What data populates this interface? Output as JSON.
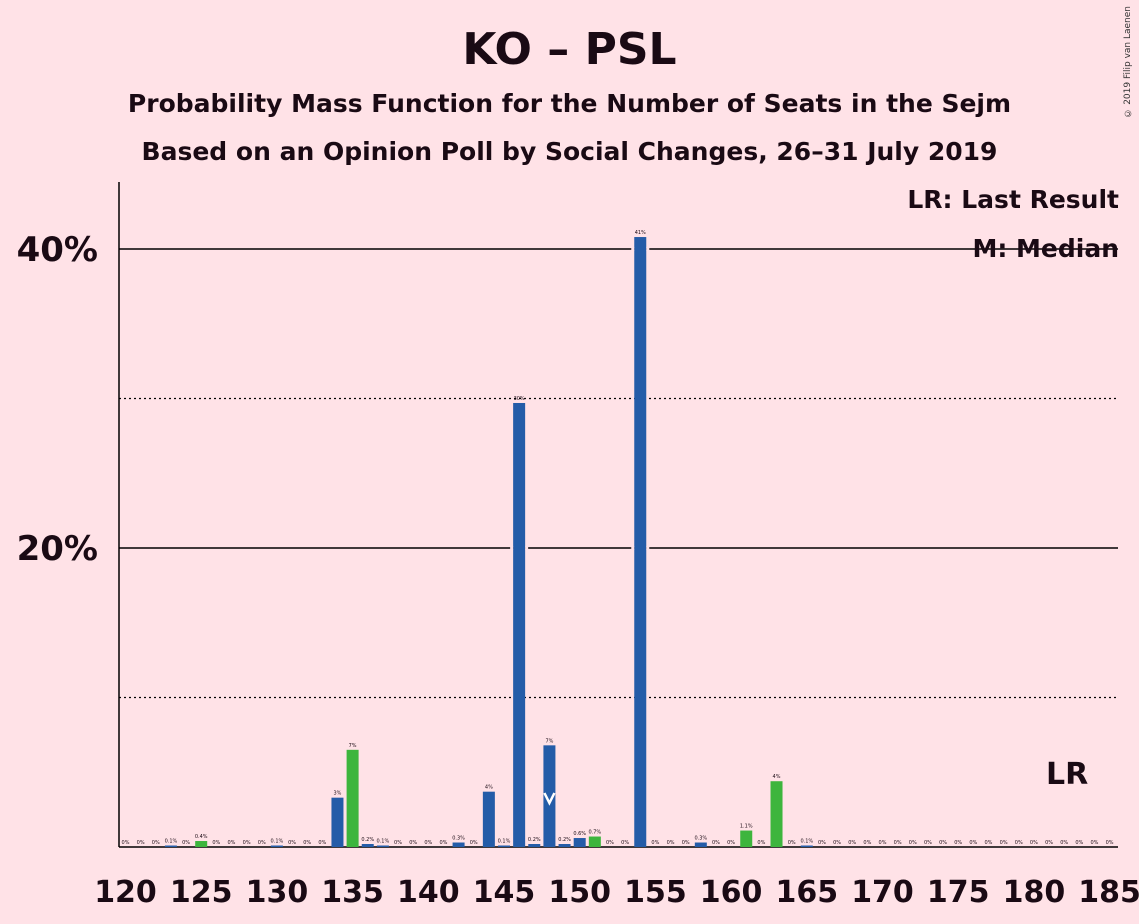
{
  "title": "KO – PSL",
  "subtitle1": "Probability Mass Function for the Number of Seats in the Sejm",
  "subtitle2": "Based on an Opinion Poll by Social Changes, 26–31 July 2019",
  "copyright": "© 2019 Filip van Laenen",
  "legend": {
    "lr": "LR: Last Result",
    "median": "M: Median"
  },
  "lr_marker": "LR",
  "chart_data": {
    "type": "bar",
    "ylabel": "",
    "xlabel": "",
    "ylim": [
      0,
      44.5
    ],
    "y_ticks": [
      {
        "v": 20,
        "label": "20%"
      },
      {
        "v": 40,
        "label": "40%"
      }
    ],
    "x_tick_labels": [
      "120",
      "125",
      "130",
      "135",
      "140",
      "145",
      "150",
      "155",
      "160",
      "165",
      "170",
      "175",
      "180",
      "185"
    ],
    "median_seat": 148,
    "last_result_seat": 182,
    "colors": {
      "blue": "#245CA8",
      "green": "#3DB53D",
      "grid": "#000000"
    },
    "series": [
      {
        "name": "",
        "bars": [
          {
            "x": 120,
            "v": 0,
            "label": "0%",
            "c": "blue"
          },
          {
            "x": 121,
            "v": 0,
            "label": "0%",
            "c": "blue"
          },
          {
            "x": 122,
            "v": 0,
            "label": "0%",
            "c": "blue"
          },
          {
            "x": 123,
            "v": 0.1,
            "label": "0.1%",
            "c": "blue"
          },
          {
            "x": 124,
            "v": 0,
            "label": "0%",
            "c": "blue"
          },
          {
            "x": 125,
            "v": 0.4,
            "label": "0.4%",
            "c": "green"
          },
          {
            "x": 126,
            "v": 0,
            "label": "0%",
            "c": "blue"
          },
          {
            "x": 127,
            "v": 0,
            "label": "0%",
            "c": "blue"
          },
          {
            "x": 128,
            "v": 0,
            "label": "0%",
            "c": "blue"
          },
          {
            "x": 129,
            "v": 0,
            "label": "0%",
            "c": "blue"
          },
          {
            "x": 130,
            "v": 0.1,
            "label": "0.1%",
            "c": "blue"
          },
          {
            "x": 131,
            "v": 0,
            "label": "0%",
            "c": "blue"
          },
          {
            "x": 132,
            "v": 0,
            "label": "0%",
            "c": "blue"
          },
          {
            "x": 133,
            "v": 0,
            "label": "0%",
            "c": "blue"
          },
          {
            "x": 134,
            "v": 3.3,
            "label": "3%",
            "c": "blue"
          },
          {
            "x": 135,
            "v": 6.5,
            "label": "7%",
            "c": "green"
          },
          {
            "x": 136,
            "v": 0.2,
            "label": "0.2%",
            "c": "blue"
          },
          {
            "x": 137,
            "v": 0.1,
            "label": "0.1%",
            "c": "blue"
          },
          {
            "x": 138,
            "v": 0,
            "label": "0%",
            "c": "blue"
          },
          {
            "x": 139,
            "v": 0,
            "label": "0%",
            "c": "blue"
          },
          {
            "x": 140,
            "v": 0,
            "label": "0%",
            "c": "blue"
          },
          {
            "x": 141,
            "v": 0,
            "label": "0%",
            "c": "blue"
          },
          {
            "x": 142,
            "v": 0.3,
            "label": "0.3%",
            "c": "blue"
          },
          {
            "x": 143,
            "v": 0,
            "label": "0%",
            "c": "blue"
          },
          {
            "x": 144,
            "v": 3.7,
            "label": "4%",
            "c": "blue"
          },
          {
            "x": 145,
            "v": 0.1,
            "label": "0.1%",
            "c": "blue"
          },
          {
            "x": 146,
            "v": 29.7,
            "label": "30%",
            "c": "blue"
          },
          {
            "x": 147,
            "v": 0.2,
            "label": "0.2%",
            "c": "blue"
          },
          {
            "x": 148,
            "v": 6.8,
            "label": "7%",
            "c": "blue"
          },
          {
            "x": 149,
            "v": 0.2,
            "label": "0.2%",
            "c": "blue"
          },
          {
            "x": 150,
            "v": 0.6,
            "label": "0.6%",
            "c": "blue"
          },
          {
            "x": 151,
            "v": 0.7,
            "label": "0.7%",
            "c": "green"
          },
          {
            "x": 152,
            "v": 0,
            "label": "0%",
            "c": "blue"
          },
          {
            "x": 153,
            "v": 0,
            "label": "0%",
            "c": "blue"
          },
          {
            "x": 154,
            "v": 40.8,
            "label": "41%",
            "c": "blue"
          },
          {
            "x": 155,
            "v": 0,
            "label": "0%",
            "c": "blue"
          },
          {
            "x": 156,
            "v": 0,
            "label": "0%",
            "c": "blue"
          },
          {
            "x": 157,
            "v": 0,
            "label": "0%",
            "c": "blue"
          },
          {
            "x": 158,
            "v": 0.3,
            "label": "0.3%",
            "c": "blue"
          },
          {
            "x": 159,
            "v": 0,
            "label": "0%",
            "c": "blue"
          },
          {
            "x": 160,
            "v": 0,
            "label": "0%",
            "c": "blue"
          },
          {
            "x": 161,
            "v": 1.1,
            "label": "1.1%",
            "c": "green"
          },
          {
            "x": 162,
            "v": 0,
            "label": "0%",
            "c": "blue"
          },
          {
            "x": 163,
            "v": 4.4,
            "label": "4%",
            "c": "green"
          },
          {
            "x": 164,
            "v": 0,
            "label": "0%",
            "c": "blue"
          },
          {
            "x": 165,
            "v": 0.1,
            "label": "0.1%",
            "c": "blue"
          },
          {
            "x": 166,
            "v": 0,
            "label": "0%",
            "c": "blue"
          },
          {
            "x": 167,
            "v": 0,
            "label": "0%",
            "c": "blue"
          },
          {
            "x": 168,
            "v": 0,
            "label": "0%",
            "c": "blue"
          },
          {
            "x": 169,
            "v": 0,
            "label": "0%",
            "c": "blue"
          },
          {
            "x": 170,
            "v": 0,
            "label": "0%",
            "c": "blue"
          },
          {
            "x": 171,
            "v": 0,
            "label": "0%",
            "c": "blue"
          },
          {
            "x": 172,
            "v": 0,
            "label": "0%",
            "c": "blue"
          },
          {
            "x": 173,
            "v": 0,
            "label": "0%",
            "c": "blue"
          },
          {
            "x": 174,
            "v": 0,
            "label": "0%",
            "c": "blue"
          },
          {
            "x": 175,
            "v": 0,
            "label": "0%",
            "c": "blue"
          },
          {
            "x": 176,
            "v": 0,
            "label": "0%",
            "c": "blue"
          },
          {
            "x": 177,
            "v": 0,
            "label": "0%",
            "c": "blue"
          },
          {
            "x": 178,
            "v": 0,
            "label": "0%",
            "c": "blue"
          },
          {
            "x": 179,
            "v": 0,
            "label": "0%",
            "c": "blue"
          },
          {
            "x": 180,
            "v": 0,
            "label": "0%",
            "c": "blue"
          },
          {
            "x": 181,
            "v": 0,
            "label": "0%",
            "c": "blue"
          },
          {
            "x": 182,
            "v": 0,
            "label": "0%",
            "c": "blue"
          },
          {
            "x": 183,
            "v": 0,
            "label": "0%",
            "c": "blue"
          },
          {
            "x": 184,
            "v": 0,
            "label": "0%",
            "c": "blue"
          },
          {
            "x": 185,
            "v": 0,
            "label": "0%",
            "c": "blue"
          }
        ]
      }
    ]
  }
}
